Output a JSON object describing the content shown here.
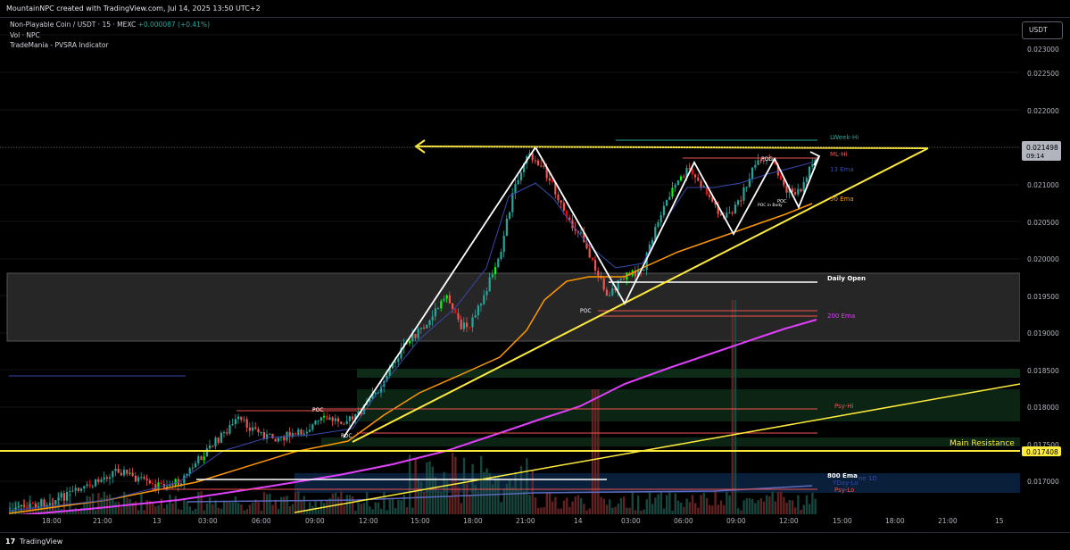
{
  "header": {
    "attribution": "MountainNPC created with TradingView.com, Jul 14, 2025 13:50 UTC+2"
  },
  "legend": {
    "symbol": "Non-Playable Coin / USDT · 15 · MEXC",
    "change": "+0.000087 (+0.41%)",
    "indicator_1": "Vol · NPC",
    "indicator_2": "TradeMania - PVSRA Indicator"
  },
  "symbol_button": {
    "label": "USDT"
  },
  "price_axis": {
    "ticks": [
      "0.023000",
      "0.022500",
      "0.022000",
      "0.021000",
      "0.020500",
      "0.020000",
      "0.019500",
      "0.019000",
      "0.018500",
      "0.018000",
      "0.017500",
      "0.017000"
    ],
    "current_price": "0.021498",
    "countdown": "09:14",
    "resistance_price": "0.017408"
  },
  "time_axis": {
    "labels": [
      "18:00",
      "21:00",
      "13",
      "03:00",
      "06:00",
      "09:00",
      "12:00",
      "15:00",
      "18:00",
      "21:00",
      "14",
      "03:00",
      "06:00",
      "09:00",
      "12:00",
      "15:00",
      "18:00",
      "21:00",
      "15"
    ]
  },
  "annotations": {
    "main_resistance": "Main Resistance",
    "daily_open": "Daily Open",
    "week_hi": "LWeek-Hi",
    "ml_hi": "ML-Hi",
    "ema_13": "13 Ema",
    "ema_50": "50 Ema",
    "ema_200": "200 Ema",
    "ema_800": "800 Ema",
    "psy_hi": "Psy-Hi",
    "psy_lo": "Psy-Lo",
    "day_lo": "YDay-Lo",
    "line_1d": "ne 1D",
    "poc": "POC",
    "poc_in_body": "POC in Body"
  },
  "colors": {
    "background": "#000000",
    "bull_candle": "#26a69a",
    "bear_candle": "#ef5350",
    "vector_bull": "#00ff00",
    "vector_bear": "#ff0000",
    "trendline": "#ffeb3b",
    "ema_13": "#3949ab",
    "ema_50": "#ff9800",
    "ema_200": "#e040fb",
    "resistance_label_bg": "#ffeb3b",
    "price_label_bg": "#b2b5be"
  },
  "footer": {
    "brand": "TradingView"
  }
}
